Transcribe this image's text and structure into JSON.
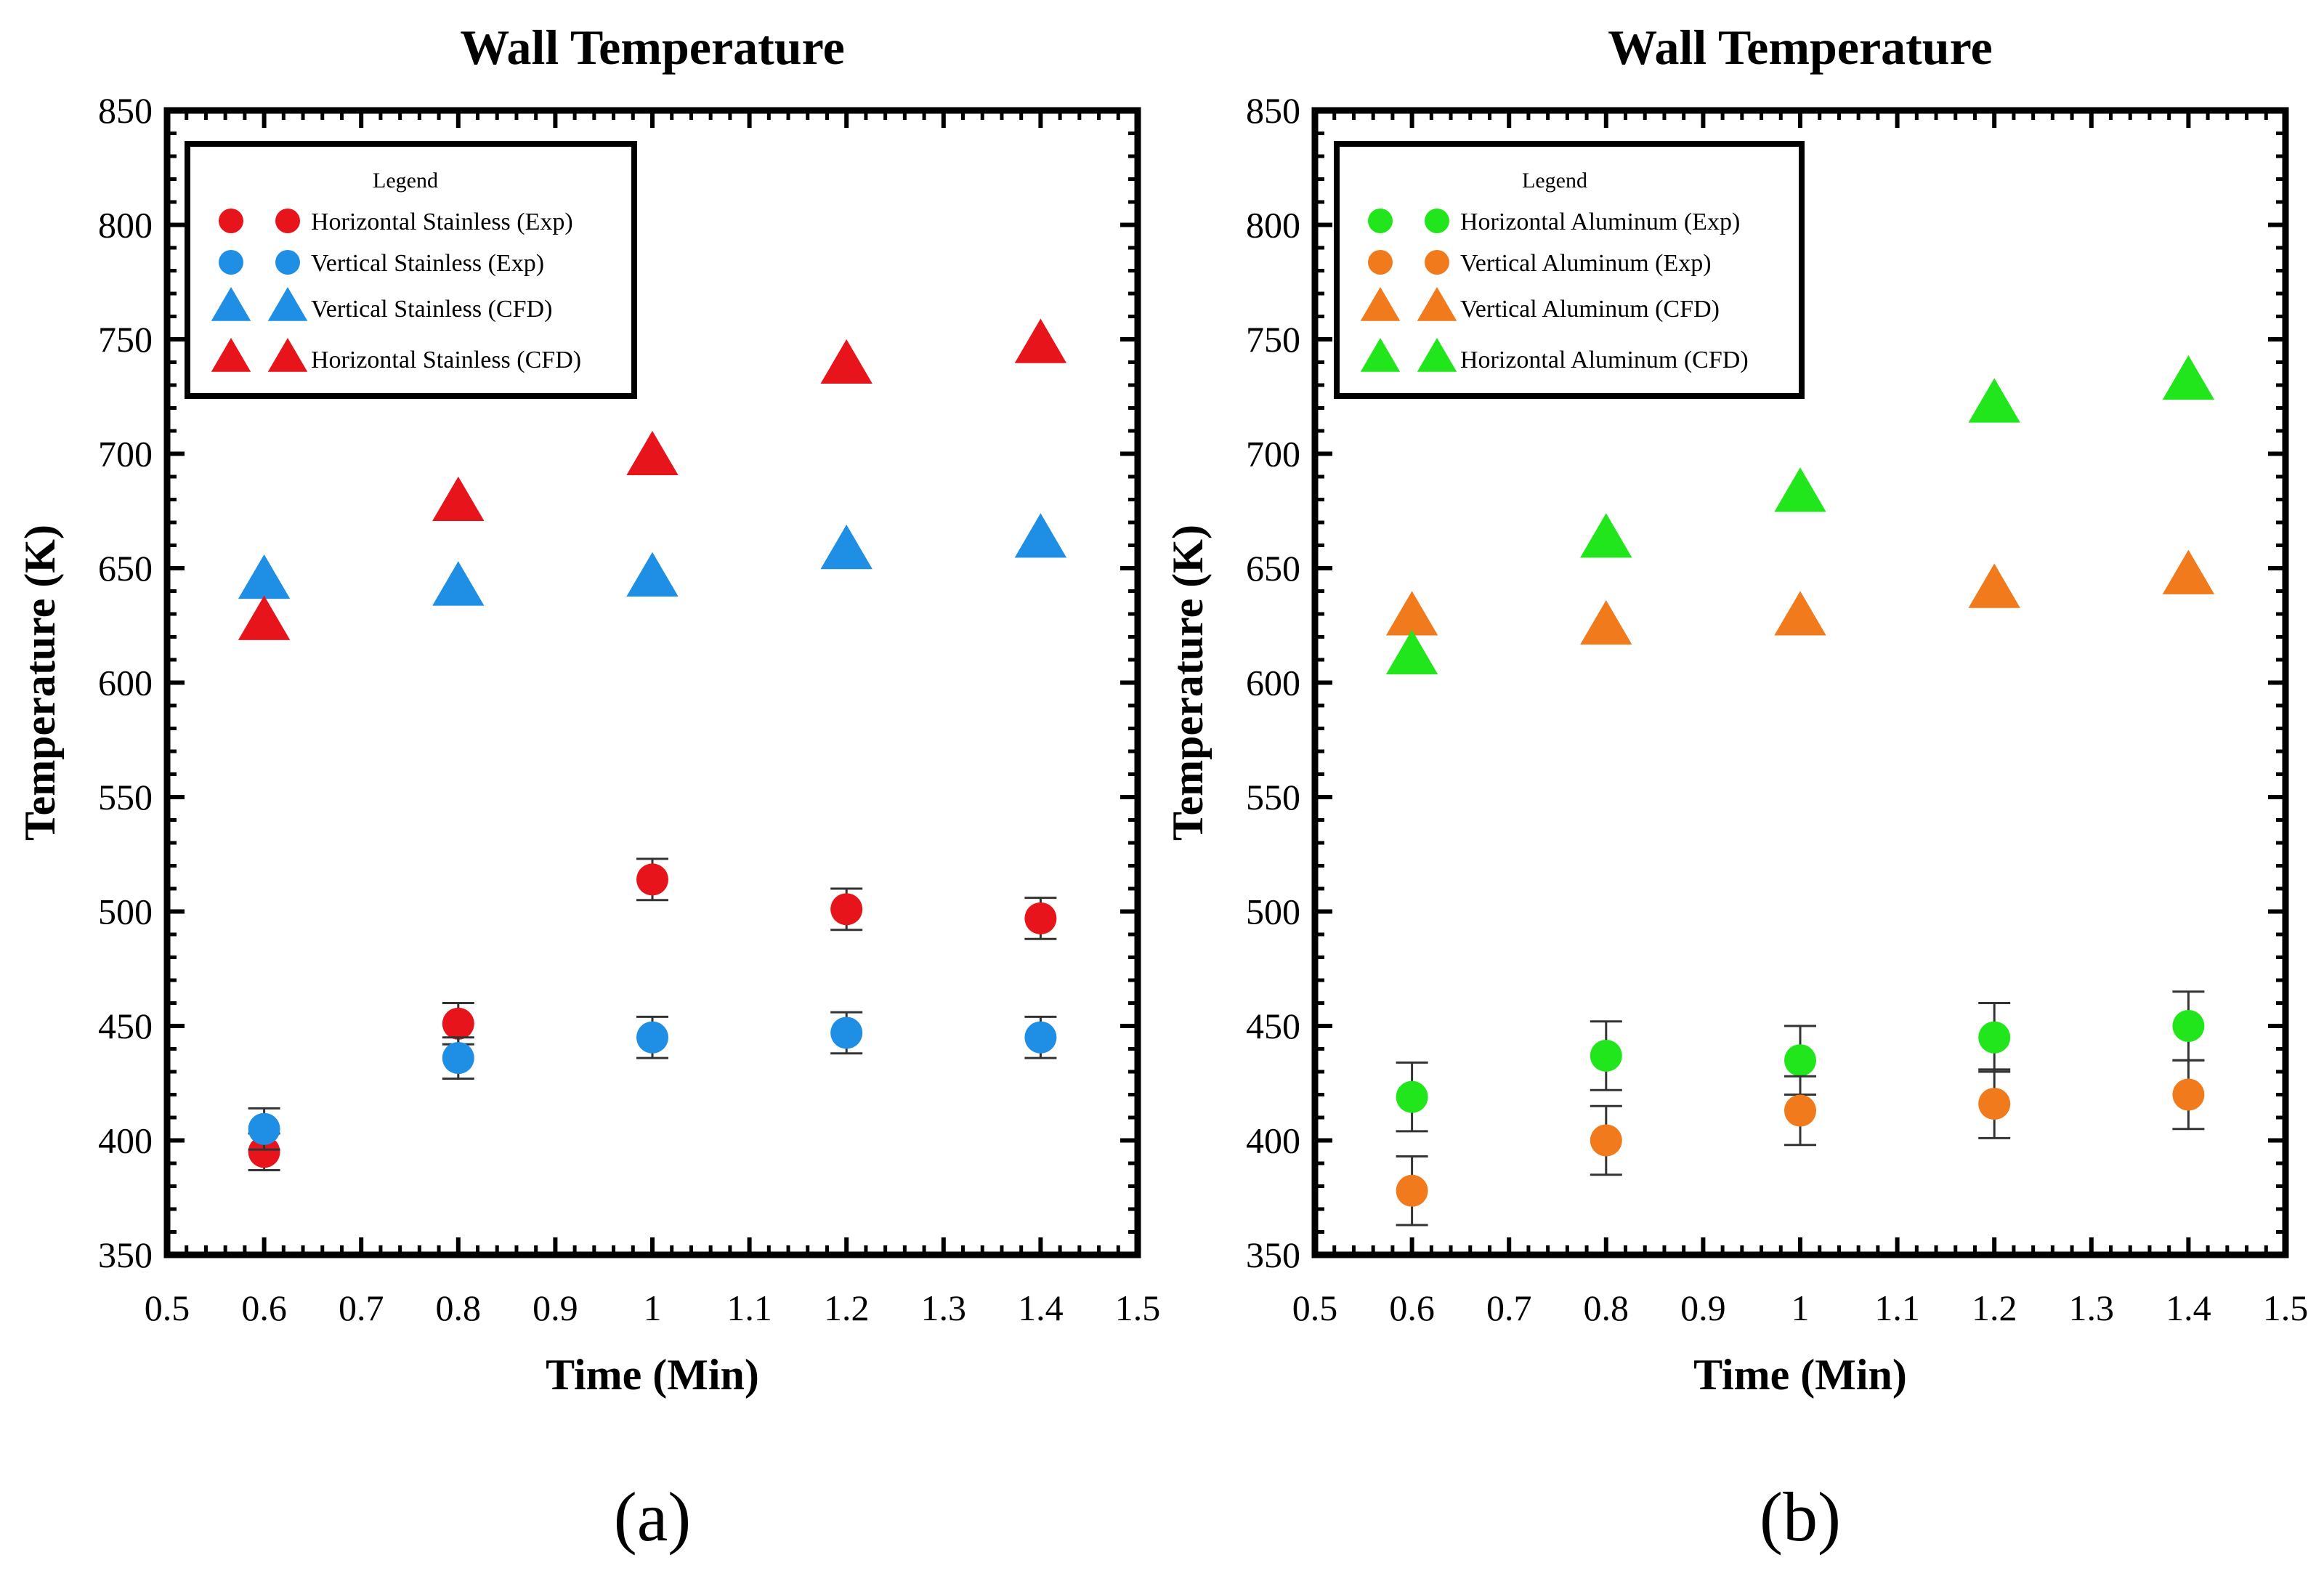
{
  "chart_data": [
    {
      "type": "scatter",
      "title": "Wall Temperature",
      "xlabel": "Time (Min)",
      "ylabel": "Temperature (K)",
      "caption": "(a)",
      "xlim": [
        0.5,
        1.5
      ],
      "ylim": [
        350,
        850
      ],
      "xticks": [
        "0.5",
        "0.6",
        "0.7",
        "0.8",
        "0.9",
        "1",
        "1.1",
        "1.2",
        "1.3",
        "1.4",
        "1.5"
      ],
      "yticks": [
        "350",
        "400",
        "450",
        "500",
        "550",
        "600",
        "650",
        "700",
        "750",
        "800",
        "850"
      ],
      "legend_title": "Legend",
      "legend_position": "top-left",
      "x": [
        0.6,
        0.8,
        1.0,
        1.2,
        1.4
      ],
      "series": [
        {
          "name": "Horizontal Stainless (Exp)",
          "marker": "circle",
          "color": "#e8141c",
          "values": [
            395,
            451,
            514,
            501,
            497
          ],
          "errors": [
            8,
            9,
            9,
            9,
            9
          ]
        },
        {
          "name": "Vertical Stainless (Exp)",
          "marker": "circle",
          "color": "#1f8fe6",
          "values": [
            405,
            436,
            445,
            447,
            445
          ],
          "errors": [
            9,
            9,
            9,
            9,
            9
          ]
        },
        {
          "name": "Vertical Stainless (CFD)",
          "marker": "triangle",
          "color": "#1f8fe6",
          "values": [
            644,
            641,
            645,
            657,
            662
          ],
          "errors": null
        },
        {
          "name": "Horizontal Stainless (CFD)",
          "marker": "triangle",
          "color": "#e8141c",
          "values": [
            626,
            678,
            698,
            738,
            747
          ],
          "errors": null
        }
      ]
    },
    {
      "type": "scatter",
      "title": "Wall Temperature",
      "xlabel": "Time (Min)",
      "ylabel": "Temperature (K)",
      "caption": "(b)",
      "xlim": [
        0.5,
        1.5
      ],
      "ylim": [
        350,
        850
      ],
      "xticks": [
        "0.5",
        "0.6",
        "0.7",
        "0.8",
        "0.9",
        "1",
        "1.1",
        "1.2",
        "1.3",
        "1.4",
        "1.5"
      ],
      "yticks": [
        "350",
        "400",
        "450",
        "500",
        "550",
        "600",
        "650",
        "700",
        "750",
        "800",
        "850"
      ],
      "legend_title": "Legend",
      "legend_position": "top-left",
      "x": [
        0.6,
        0.8,
        1.0,
        1.2,
        1.4
      ],
      "series": [
        {
          "name": "Horizontal Aluminum (Exp)",
          "marker": "circle",
          "color": "#22e61c",
          "values": [
            419,
            437,
            435,
            445,
            450
          ],
          "errors": [
            15,
            15,
            15,
            15,
            15
          ]
        },
        {
          "name": "Vertical Aluminum (Exp)",
          "marker": "circle",
          "color": "#f07a1c",
          "values": [
            378,
            400,
            413,
            416,
            420
          ],
          "errors": [
            15,
            15,
            15,
            15,
            15
          ]
        },
        {
          "name": "Vertical Aluminum (CFD)",
          "marker": "triangle",
          "color": "#f07a1c",
          "values": [
            628,
            624,
            628,
            640,
            646
          ],
          "errors": null
        },
        {
          "name": "Horizontal Aluminum (CFD)",
          "marker": "triangle",
          "color": "#22e61c",
          "values": [
            611,
            662,
            682,
            721,
            731
          ],
          "errors": null
        }
      ]
    }
  ]
}
